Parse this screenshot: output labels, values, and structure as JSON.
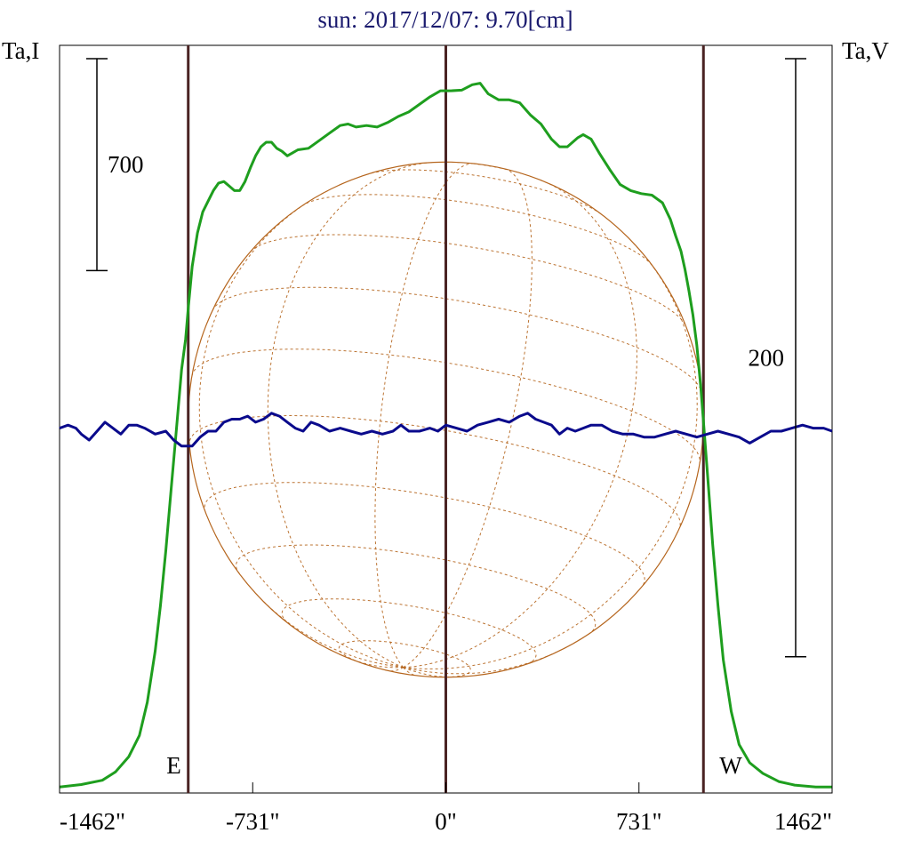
{
  "chart_data": {
    "type": "line",
    "title": "sun: 2017/12/07: 9.70[cm]",
    "left_axis_label": "Ta,I",
    "right_axis_label": "Ta,V",
    "x_ticks": [
      -1462,
      -731,
      0,
      731,
      1462
    ],
    "x_tick_labels": [
      "-1462\"",
      "-731\"",
      "0\"",
      "731\"",
      "1462\""
    ],
    "xlim": [
      -1462,
      1462
    ],
    "limb_markers": [
      {
        "x": -975,
        "label": "E"
      },
      {
        "x": 0,
        "label": ""
      },
      {
        "x": 975,
        "label": "W"
      }
    ],
    "scale_bars": [
      {
        "side": "left",
        "label": "700",
        "value": 700
      },
      {
        "side": "right",
        "label": "200",
        "value": 200
      }
    ],
    "series": [
      {
        "name": "Ta,I",
        "color": "#1e9e1e",
        "axis": "left",
        "ylim": [
          -20,
          2450
        ],
        "points": [
          [
            -1462,
            0
          ],
          [
            -1380,
            8
          ],
          [
            -1300,
            22
          ],
          [
            -1250,
            50
          ],
          [
            -1200,
            100
          ],
          [
            -1160,
            170
          ],
          [
            -1130,
            280
          ],
          [
            -1100,
            450
          ],
          [
            -1080,
            600
          ],
          [
            -1060,
            780
          ],
          [
            -1040,
            980
          ],
          [
            -1020,
            1180
          ],
          [
            -1000,
            1380
          ],
          [
            -985,
            1480
          ],
          [
            -975,
            1580
          ],
          [
            -960,
            1720
          ],
          [
            -940,
            1830
          ],
          [
            -920,
            1900
          ],
          [
            -900,
            1935
          ],
          [
            -880,
            1970
          ],
          [
            -860,
            1995
          ],
          [
            -840,
            2000
          ],
          [
            -820,
            1985
          ],
          [
            -800,
            1970
          ],
          [
            -780,
            1970
          ],
          [
            -760,
            2000
          ],
          [
            -740,
            2045
          ],
          [
            -720,
            2085
          ],
          [
            -700,
            2115
          ],
          [
            -680,
            2130
          ],
          [
            -660,
            2130
          ],
          [
            -640,
            2110
          ],
          [
            -620,
            2100
          ],
          [
            -600,
            2085
          ],
          [
            -580,
            2095
          ],
          [
            -560,
            2105
          ],
          [
            -520,
            2110
          ],
          [
            -480,
            2135
          ],
          [
            -440,
            2160
          ],
          [
            -400,
            2185
          ],
          [
            -370,
            2190
          ],
          [
            -340,
            2180
          ],
          [
            -300,
            2185
          ],
          [
            -260,
            2180
          ],
          [
            -220,
            2195
          ],
          [
            -180,
            2215
          ],
          [
            -140,
            2230
          ],
          [
            -100,
            2255
          ],
          [
            -60,
            2280
          ],
          [
            -20,
            2300
          ],
          [
            20,
            2300
          ],
          [
            60,
            2302
          ],
          [
            100,
            2320
          ],
          [
            130,
            2325
          ],
          [
            160,
            2290
          ],
          [
            200,
            2270
          ],
          [
            240,
            2270
          ],
          [
            280,
            2260
          ],
          [
            320,
            2220
          ],
          [
            360,
            2190
          ],
          [
            400,
            2140
          ],
          [
            430,
            2115
          ],
          [
            460,
            2115
          ],
          [
            500,
            2145
          ],
          [
            520,
            2155
          ],
          [
            550,
            2140
          ],
          [
            580,
            2095
          ],
          [
            620,
            2040
          ],
          [
            660,
            1990
          ],
          [
            700,
            1970
          ],
          [
            740,
            1960
          ],
          [
            780,
            1955
          ],
          [
            820,
            1930
          ],
          [
            850,
            1875
          ],
          [
            870,
            1820
          ],
          [
            890,
            1770
          ],
          [
            905,
            1710
          ],
          [
            920,
            1640
          ],
          [
            935,
            1560
          ],
          [
            950,
            1460
          ],
          [
            965,
            1320
          ],
          [
            980,
            1150
          ],
          [
            995,
            980
          ],
          [
            1010,
            800
          ],
          [
            1030,
            600
          ],
          [
            1050,
            420
          ],
          [
            1080,
            250
          ],
          [
            1110,
            140
          ],
          [
            1150,
            80
          ],
          [
            1200,
            45
          ],
          [
            1260,
            18
          ],
          [
            1320,
            6
          ],
          [
            1400,
            0
          ],
          [
            1462,
            0
          ]
        ]
      },
      {
        "name": "Ta,V",
        "color": "#0a0a8c",
        "axis": "right",
        "ylim": [
          -122,
          128
        ],
        "points": [
          [
            -1462,
            0
          ],
          [
            -1430,
            1
          ],
          [
            -1400,
            0
          ],
          [
            -1380,
            -2
          ],
          [
            -1350,
            -4
          ],
          [
            -1320,
            -1
          ],
          [
            -1290,
            2
          ],
          [
            -1260,
            0
          ],
          [
            -1230,
            -2
          ],
          [
            -1200,
            1
          ],
          [
            -1170,
            1
          ],
          [
            -1140,
            0
          ],
          [
            -1100,
            -2
          ],
          [
            -1060,
            -1
          ],
          [
            -1030,
            -4
          ],
          [
            -1000,
            -6
          ],
          [
            -960,
            -6
          ],
          [
            -930,
            -3
          ],
          [
            -900,
            -1
          ],
          [
            -870,
            -1
          ],
          [
            -840,
            2
          ],
          [
            -810,
            3
          ],
          [
            -780,
            3
          ],
          [
            -750,
            4
          ],
          [
            -720,
            2
          ],
          [
            -690,
            3
          ],
          [
            -660,
            5
          ],
          [
            -630,
            4
          ],
          [
            -600,
            2
          ],
          [
            -570,
            0
          ],
          [
            -540,
            -1
          ],
          [
            -510,
            2
          ],
          [
            -480,
            1
          ],
          [
            -440,
            -1
          ],
          [
            -400,
            0
          ],
          [
            -360,
            -1
          ],
          [
            -320,
            -2
          ],
          [
            -280,
            -1
          ],
          [
            -240,
            -2
          ],
          [
            -200,
            -1
          ],
          [
            -170,
            1
          ],
          [
            -140,
            -1
          ],
          [
            -100,
            -1
          ],
          [
            -60,
            0
          ],
          [
            -30,
            -1
          ],
          [
            0,
            1
          ],
          [
            40,
            0
          ],
          [
            80,
            -1
          ],
          [
            120,
            1
          ],
          [
            160,
            2
          ],
          [
            200,
            3
          ],
          [
            240,
            2
          ],
          [
            280,
            4
          ],
          [
            310,
            5
          ],
          [
            340,
            3
          ],
          [
            370,
            2
          ],
          [
            400,
            1
          ],
          [
            430,
            -2
          ],
          [
            460,
            0
          ],
          [
            490,
            -1
          ],
          [
            520,
            0
          ],
          [
            550,
            1
          ],
          [
            590,
            1
          ],
          [
            630,
            -1
          ],
          [
            670,
            -2
          ],
          [
            710,
            -2
          ],
          [
            750,
            -3
          ],
          [
            790,
            -3
          ],
          [
            830,
            -2
          ],
          [
            870,
            -1
          ],
          [
            910,
            -2
          ],
          [
            950,
            -3
          ],
          [
            990,
            -2
          ],
          [
            1030,
            -1
          ],
          [
            1070,
            -2
          ],
          [
            1110,
            -3
          ],
          [
            1150,
            -5
          ],
          [
            1190,
            -3
          ],
          [
            1230,
            -1
          ],
          [
            1270,
            -1
          ],
          [
            1310,
            0
          ],
          [
            1350,
            1
          ],
          [
            1390,
            0
          ],
          [
            1430,
            0
          ],
          [
            1462,
            -1
          ]
        ]
      }
    ],
    "solar_disk": {
      "center_x": 0,
      "radius": 975,
      "color": "#b5651d",
      "grid": "dashed heliographic latitude/longitude lines"
    }
  }
}
